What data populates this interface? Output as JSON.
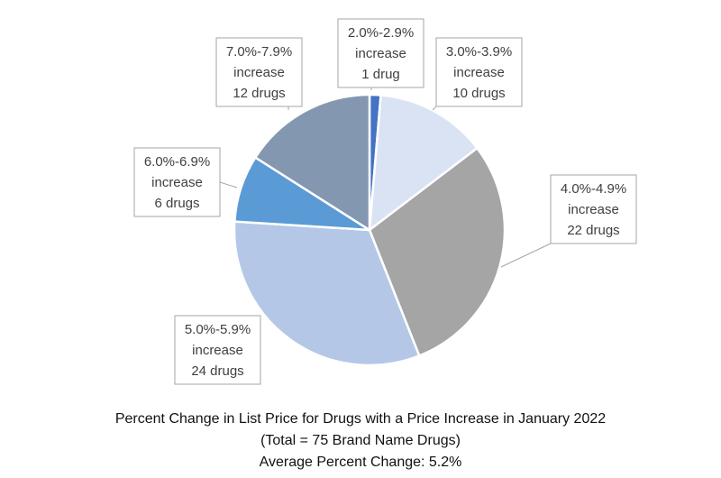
{
  "chart_data": {
    "type": "pie",
    "title_lines": [
      "Percent Change in List Price for Drugs with a Price Increase in January 2022",
      "(Total = 75 Brand Name Drugs)",
      "Average Percent Change: 5.2%"
    ],
    "slices": [
      {
        "range": "2.0%-2.9%",
        "word": "increase",
        "count_label": "1 drug",
        "value": 1,
        "color": "#4472c4"
      },
      {
        "range": "3.0%-3.9%",
        "word": "increase",
        "count_label": "10 drugs",
        "value": 10,
        "color": "#dae3f3"
      },
      {
        "range": "4.0%-4.9%",
        "word": "increase",
        "count_label": "22 drugs",
        "value": 22,
        "color": "#a5a5a5"
      },
      {
        "range": "5.0%-5.9%",
        "word": "increase",
        "count_label": "24 drugs",
        "value": 24,
        "color": "#b4c7e7"
      },
      {
        "range": "6.0%-6.9%",
        "word": "increase",
        "count_label": "6 drugs",
        "value": 6,
        "color": "#5b9bd5"
      },
      {
        "range": "7.0%-7.9%",
        "word": "increase",
        "count_label": "12 drugs",
        "value": 12,
        "color": "#8497b0"
      }
    ]
  }
}
